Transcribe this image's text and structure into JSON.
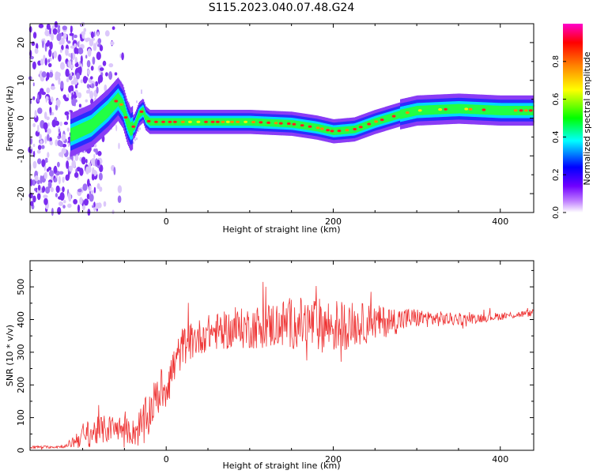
{
  "figure_title": "S115.2023.040.07.48.G24",
  "chart_data": [
    {
      "type": "heatmap",
      "title": "S115.2023.040.07.48.G24",
      "xlabel": "Height of straight line (km)",
      "ylabel": "Frequency (Hz)",
      "xlim": [
        -163,
        440
      ],
      "ylim": [
        -25,
        25
      ],
      "x_ticks": [
        0,
        200,
        400
      ],
      "y_ticks": [
        -20,
        -10,
        0,
        10,
        20
      ],
      "colorbar": {
        "label": "Normalized spectral amplitude",
        "range": [
          0,
          1
        ],
        "ticks": [
          "0.0",
          "0.2",
          "0.4",
          "0.6",
          "0.8"
        ],
        "colormap": [
          "#ffffff",
          "#8000ff",
          "#0000ff",
          "#00ffff",
          "#00ff00",
          "#ffff00",
          "#ff8000",
          "#ff0000",
          "#ff00ff"
        ]
      },
      "ridge": {
        "x": [
          -163,
          -120,
          -90,
          -70,
          -58,
          -52,
          -47,
          -43,
          -38,
          -33,
          -28,
          -25,
          -20,
          0,
          100,
          150,
          180,
          200,
          225,
          250,
          280,
          300,
          350,
          400,
          440
        ],
        "freq": [
          -6,
          -5,
          -2,
          2,
          5,
          3,
          -1,
          -3,
          -2,
          1,
          2,
          0,
          -1,
          -1,
          -1,
          -1.5,
          -2.5,
          -3.5,
          -3,
          -1,
          1,
          2,
          2.5,
          2,
          2
        ]
      }
    },
    {
      "type": "line",
      "xlabel": "Height of straight line (km)",
      "ylabel": "SNR (10 * v/v)",
      "xlim": [
        -163,
        440
      ],
      "ylim": [
        0,
        580
      ],
      "x_ticks": [
        0,
        200,
        400
      ],
      "y_ticks": [
        0,
        100,
        200,
        300,
        400,
        500
      ],
      "color": "#ee3333",
      "series": [
        {
          "name": "SNR",
          "x": [
            -163,
            -140,
            -120,
            -100,
            -80,
            -60,
            -40,
            -25,
            -15,
            0,
            20,
            50,
            100,
            150,
            200,
            250,
            300,
            350,
            400,
            440
          ],
          "y": [
            10,
            10,
            12,
            45,
            60,
            70,
            55,
            80,
            150,
            200,
            320,
            360,
            375,
            390,
            380,
            390,
            405,
            400,
            410,
            420
          ],
          "noise": [
            4,
            4,
            5,
            40,
            45,
            40,
            40,
            80,
            60,
            70,
            60,
            55,
            65,
            80,
            85,
            55,
            30,
            18,
            12,
            10
          ]
        }
      ]
    }
  ]
}
